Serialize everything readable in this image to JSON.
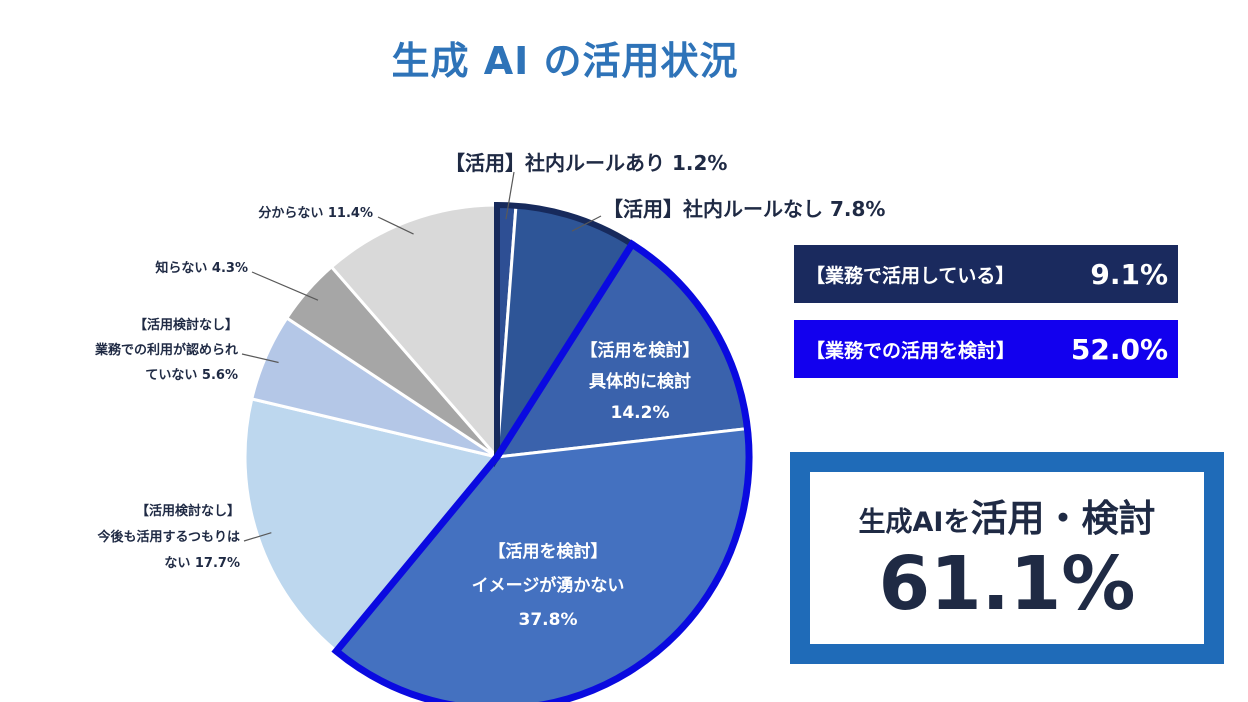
{
  "title": "生成 AI の活用状況",
  "colors": {
    "title": "#2e73b8",
    "badge_using": "#1a2a5e",
    "badge_considering": "#1200ee",
    "summary_border": "#1f6bb8",
    "highlight_using": "#172a5c",
    "highlight_considering": "#0a0ae0"
  },
  "badges": [
    {
      "label": "【業務で活用している】",
      "value": "9.1%"
    },
    {
      "label": "【業務での活用を検討】",
      "value": "52.0%"
    }
  ],
  "summary": {
    "prefix": "生成AIを",
    "emphasis": "活用・検討",
    "value": "61.1%"
  },
  "chart_data": {
    "type": "pie",
    "start": "12 o'clock",
    "direction": "clockwise",
    "unit": "%",
    "slices": [
      {
        "lines": [
          "【活用】社内ルールあり 1.2%"
        ],
        "value": 1.2,
        "color": "#2e4f94"
      },
      {
        "lines": [
          "【活用】社内ルールなし 7.8%"
        ],
        "value": 7.8,
        "color": "#2e5597"
      },
      {
        "lines": [
          "【活用を検討】",
          "具体的に検討",
          "14.2%"
        ],
        "value": 14.2,
        "color": "#3a62ac"
      },
      {
        "lines": [
          "【活用を検討】",
          "イメージが湧かない",
          "37.8%"
        ],
        "value": 37.8,
        "color": "#4471c0"
      },
      {
        "lines": [
          "【活用検討なし】",
          "今後も活用するつもりは",
          "ない 17.7%"
        ],
        "value": 17.7,
        "color": "#bdd7ee"
      },
      {
        "lines": [
          "【活用検討なし】",
          "業務での利用が認められ",
          "ていない 5.6%"
        ],
        "value": 5.6,
        "color": "#b4c7e7"
      },
      {
        "lines": [
          "知らない 4.3%"
        ],
        "value": 4.3,
        "color": "#a6a6a6"
      },
      {
        "lines": [
          "分からない 11.4%"
        ],
        "value": 11.4,
        "color": "#d9d9d9"
      }
    ]
  }
}
